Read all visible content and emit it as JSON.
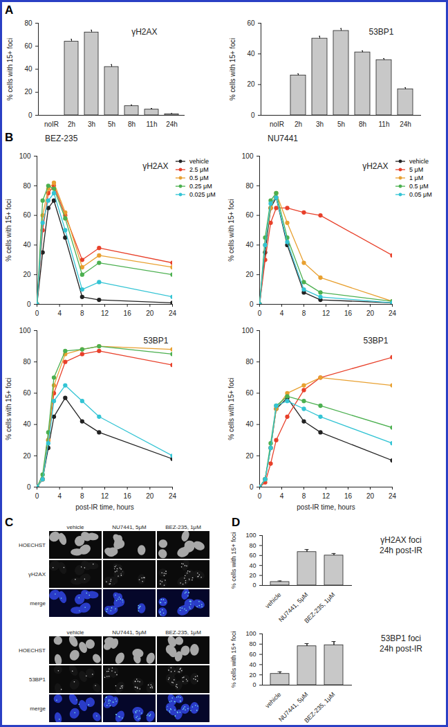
{
  "chart_data": [
    {
      "panel": "A",
      "type": "bar",
      "title": "γH2AX",
      "y_label": "% cells with 15+ foci",
      "categories": [
        "noIR",
        "2h",
        "3h",
        "5h",
        "8h",
        "11h",
        "24h"
      ],
      "values": [
        0,
        64,
        72,
        42,
        8,
        5,
        1
      ],
      "error": [
        0,
        2,
        2,
        2,
        1,
        1,
        0.5
      ],
      "color": "#c8c8c8",
      "ylim": [
        0,
        80
      ],
      "yticks": [
        0,
        20,
        40,
        60,
        80
      ]
    },
    {
      "type": "bar",
      "title": "53BP1",
      "y_label": "% cells with 15+ foci",
      "categories": [
        "noIR",
        "2h",
        "3h",
        "5h",
        "8h",
        "11h",
        "24h"
      ],
      "values": [
        0,
        26,
        50,
        55,
        41,
        36,
        17
      ],
      "error": [
        0,
        1,
        1.5,
        1.5,
        1,
        1,
        1
      ],
      "color": "#c8c8c8",
      "ylim": [
        0,
        60
      ],
      "yticks": [
        0,
        20,
        40,
        60
      ]
    },
    {
      "panel": "B",
      "type": "line",
      "subtitle": "BEZ-235",
      "title": "γH2AX",
      "y_label": "% cells with 15+ foci",
      "x": [
        0,
        1,
        2,
        3,
        5,
        8,
        11,
        24
      ],
      "xlim": [
        0,
        24
      ],
      "xticks": [
        0,
        4,
        8,
        12,
        16,
        20,
        24
      ],
      "ylim": [
        0,
        100
      ],
      "yticks": [
        0,
        20,
        40,
        60,
        80,
        100
      ],
      "marker": "circle",
      "legend": "right",
      "series": [
        {
          "name": "vehicle",
          "color": "#222222",
          "values": [
            0,
            35,
            65,
            70,
            45,
            5,
            3,
            1
          ]
        },
        {
          "name": "2.5 μM",
          "color": "#e8402a",
          "values": [
            0,
            50,
            75,
            80,
            60,
            30,
            38,
            28
          ]
        },
        {
          "name": "0.5 μM",
          "color": "#e8a030",
          "values": [
            0,
            60,
            78,
            82,
            62,
            25,
            33,
            25
          ]
        },
        {
          "name": "0.25 μM",
          "color": "#4cb050",
          "values": [
            0,
            70,
            80,
            78,
            58,
            20,
            28,
            20
          ]
        },
        {
          "name": "0.025 μM",
          "color": "#33c4d4",
          "values": [
            0,
            55,
            70,
            75,
            50,
            10,
            15,
            5
          ]
        }
      ]
    },
    {
      "type": "line",
      "subtitle": "NU7441",
      "title": "γH2AX",
      "y_label": "% cells with 15+ foci",
      "x": [
        0,
        1,
        2,
        3,
        5,
        8,
        11,
        24
      ],
      "xlim": [
        0,
        24
      ],
      "xticks": [
        0,
        4,
        8,
        12,
        16,
        20,
        24
      ],
      "ylim": [
        0,
        100
      ],
      "yticks": [
        0,
        20,
        40,
        60,
        80,
        100
      ],
      "marker": "circle",
      "legend": "right",
      "series": [
        {
          "name": "vehicle",
          "color": "#222222",
          "values": [
            0,
            35,
            65,
            72,
            40,
            8,
            3,
            1
          ]
        },
        {
          "name": "5 μM",
          "color": "#e8402a",
          "values": [
            0,
            30,
            55,
            65,
            65,
            62,
            60,
            33
          ]
        },
        {
          "name": "1 μM",
          "color": "#e8a030",
          "values": [
            0,
            40,
            65,
            75,
            55,
            28,
            18,
            2
          ]
        },
        {
          "name": "0.5 μM",
          "color": "#4cb050",
          "values": [
            0,
            45,
            70,
            75,
            45,
            15,
            8,
            2
          ]
        },
        {
          "name": "0.05 μM",
          "color": "#33c4d4",
          "values": [
            0,
            40,
            68,
            72,
            42,
            10,
            5,
            1
          ]
        }
      ]
    },
    {
      "type": "line",
      "title": "53BP1",
      "x_label": "post-IR time, hours",
      "y_label": "% cells with 15+ foci",
      "x": [
        0,
        1,
        2,
        3,
        5,
        8,
        11,
        24
      ],
      "xlim": [
        0,
        24
      ],
      "xticks": [
        0,
        4,
        8,
        12,
        16,
        20,
        24
      ],
      "ylim": [
        0,
        100
      ],
      "yticks": [
        0,
        20,
        40,
        60,
        80,
        100
      ],
      "marker": "circle",
      "series": [
        {
          "name": "vehicle",
          "color": "#222222",
          "values": [
            0,
            5,
            25,
            45,
            57,
            42,
            35,
            18
          ]
        },
        {
          "name": "2.5 μM",
          "color": "#e8402a",
          "values": [
            0,
            5,
            30,
            60,
            80,
            85,
            87,
            78
          ]
        },
        {
          "name": "0.5 μM",
          "color": "#e8a030",
          "values": [
            0,
            5,
            30,
            65,
            85,
            88,
            90,
            88
          ]
        },
        {
          "name": "0.25 μM",
          "color": "#4cb050",
          "values": [
            0,
            8,
            35,
            70,
            87,
            88,
            90,
            85
          ]
        },
        {
          "name": "0.025 μM",
          "color": "#33c4d4",
          "values": [
            0,
            5,
            28,
            55,
            65,
            55,
            45,
            20
          ]
        }
      ]
    },
    {
      "type": "line",
      "title": "53BP1",
      "x_label": "post-IR time, hours",
      "y_label": "% cells with 15+ foci",
      "x": [
        0,
        1,
        2,
        3,
        5,
        8,
        11,
        24
      ],
      "xlim": [
        0,
        24
      ],
      "xticks": [
        0,
        4,
        8,
        12,
        16,
        20,
        24
      ],
      "ylim": [
        0,
        100
      ],
      "yticks": [
        0,
        20,
        40,
        60,
        80,
        100
      ],
      "marker": "circle",
      "series": [
        {
          "name": "vehicle",
          "color": "#222222",
          "values": [
            0,
            5,
            25,
            50,
            57,
            42,
            35,
            17
          ]
        },
        {
          "name": "5 μM",
          "color": "#e8402a",
          "values": [
            0,
            3,
            15,
            30,
            45,
            62,
            70,
            83
          ]
        },
        {
          "name": "1 μM",
          "color": "#e8a030",
          "values": [
            0,
            5,
            25,
            50,
            60,
            65,
            70,
            65
          ]
        },
        {
          "name": "0.5 μM",
          "color": "#4cb050",
          "values": [
            0,
            5,
            28,
            52,
            58,
            55,
            52,
            38
          ]
        },
        {
          "name": "0.05 μM",
          "color": "#33c4d4",
          "values": [
            0,
            5,
            25,
            52,
            55,
            50,
            45,
            28
          ]
        }
      ]
    },
    {
      "panel": "C",
      "type": "image_grid",
      "grids": [
        {
          "columns": [
            "vehicle",
            "NU7441, 5μM",
            "BEZ-235, 1μM"
          ],
          "rows": [
            "HOECHST",
            "γH2AX",
            "merge"
          ]
        },
        {
          "columns": [
            "vehicle",
            "NU7441, 5μM",
            "BEZ-235, 1μM"
          ],
          "rows": [
            "HOECHST",
            "53BP1",
            "merge"
          ]
        }
      ]
    },
    {
      "panel": "D",
      "type": "bar",
      "title": "γH2AX foci",
      "subtitle": "24h post-IR",
      "y_label": "% cells with 15+ foci",
      "categories": [
        "vehicle",
        "NU7441, 5μM",
        "BEZ-235, 1μM"
      ],
      "values": [
        7,
        67,
        60
      ],
      "error": [
        2,
        5,
        4
      ],
      "color": "#c8c8c8",
      "ylim": [
        0,
        100
      ],
      "yticks": [
        0,
        20,
        40,
        60,
        80,
        100
      ]
    },
    {
      "type": "bar",
      "title": "53BP1 foci",
      "subtitle": "24h post-IR",
      "y_label": "% cells with 15+ foci",
      "categories": [
        "vehicle",
        "NU7441, 5μM",
        "BEZ-235, 1μM"
      ],
      "values": [
        22,
        76,
        78
      ],
      "error": [
        4,
        5,
        7
      ],
      "color": "#c8c8c8",
      "ylim": [
        0,
        100
      ],
      "yticks": [
        0,
        20,
        40,
        60,
        80,
        100
      ]
    }
  ]
}
